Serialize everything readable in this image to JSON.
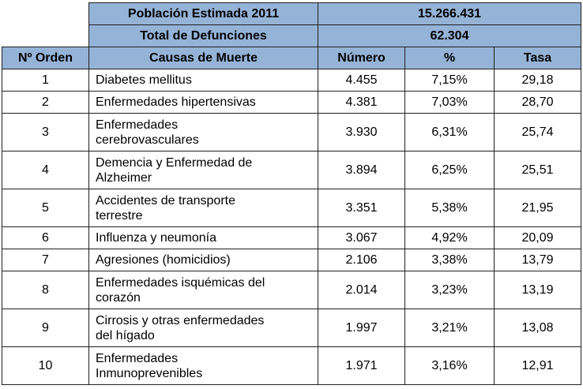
{
  "summary": {
    "population_label": "Población Estimada 2011",
    "population_value": "15.266.431",
    "deaths_label": "Total de Defunciones",
    "deaths_value": "62.304"
  },
  "columns": {
    "order": "Nº Orden",
    "cause": "Causas de Muerte",
    "number": "Número",
    "percent": "%",
    "rate": "Tasa"
  },
  "rows": [
    {
      "order": "1",
      "cause_line1": "Diabetes mellitus",
      "cause_line2": "",
      "number": "4.455",
      "percent": "7,15%",
      "rate": "29,18"
    },
    {
      "order": "2",
      "cause_line1": "Enfermedades hipertensivas",
      "cause_line2": "",
      "number": "4.381",
      "percent": "7,03%",
      "rate": "28,70"
    },
    {
      "order": "3",
      "cause_line1": "Enfermedades",
      "cause_line2": "cerebrovasculares",
      "number": "3.930",
      "percent": "6,31%",
      "rate": "25,74"
    },
    {
      "order": "4",
      "cause_line1": "Demencia y Enfermedad de",
      "cause_line2": "Alzheimer",
      "number": "3.894",
      "percent": "6,25%",
      "rate": "25,51"
    },
    {
      "order": "5",
      "cause_line1": "Accidentes de transporte",
      "cause_line2": "terrestre",
      "number": "3.351",
      "percent": "5,38%",
      "rate": "21,95"
    },
    {
      "order": "6",
      "cause_line1": "Influenza y neumonía",
      "cause_line2": "",
      "number": "3.067",
      "percent": "4,92%",
      "rate": "20,09"
    },
    {
      "order": "7",
      "cause_line1": "Agresiones (homicidios)",
      "cause_line2": "",
      "number": "2.106",
      "percent": "3,38%",
      "rate": "13,79"
    },
    {
      "order": "8",
      "cause_line1": "Enfermedades isquémicas del",
      "cause_line2": "corazón",
      "number": "2.014",
      "percent": "3,23%",
      "rate": "13,19"
    },
    {
      "order": "9",
      "cause_line1": "Cirrosis y otras enfermedades",
      "cause_line2": "del hígado",
      "number": "1.997",
      "percent": "3,21%",
      "rate": "13,08"
    },
    {
      "order": "10",
      "cause_line1": "Enfermedades",
      "cause_line2": "Inmunoprevenibles",
      "number": "1.971",
      "percent": "3,16%",
      "rate": "12,91"
    }
  ],
  "colors": {
    "header_fill": "#95b3d7",
    "border": "#1f1f1f"
  }
}
